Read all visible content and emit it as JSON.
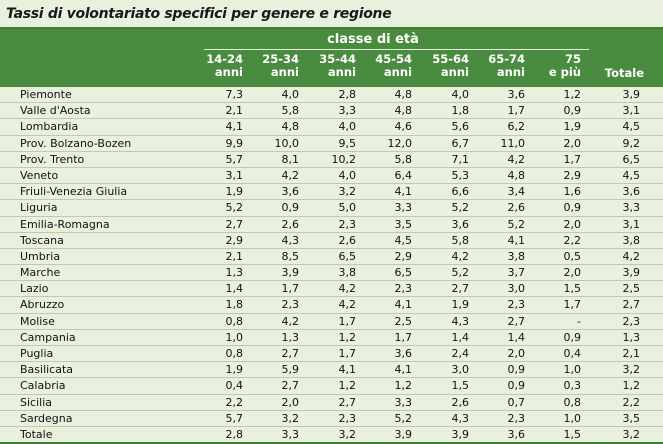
{
  "title": "Tassi di volontariato specifici per genere e regione",
  "group_header": "classe di età",
  "columns": [
    {
      "l1": "14-24",
      "l2": "anni"
    },
    {
      "l1": "25-34",
      "l2": "anni"
    },
    {
      "l1": "35-44",
      "l2": "anni"
    },
    {
      "l1": "45-54",
      "l2": "anni"
    },
    {
      "l1": "55-64",
      "l2": "anni"
    },
    {
      "l1": "65-74",
      "l2": "anni"
    },
    {
      "l1": "75",
      "l2": "e più"
    }
  ],
  "total_header": "Totale",
  "rows": [
    {
      "name": "Piemonte",
      "v": [
        "7,3",
        "4,0",
        "2,8",
        "4,8",
        "4,0",
        "3,6",
        "1,2",
        "3,9"
      ]
    },
    {
      "name": "Valle d'Aosta",
      "v": [
        "2,1",
        "5,8",
        "3,3",
        "4,8",
        "1,8",
        "1,7",
        "0,9",
        "3,1"
      ]
    },
    {
      "name": "Lombardia",
      "v": [
        "4,1",
        "4,8",
        "4,0",
        "4,6",
        "5,6",
        "6,2",
        "1,9",
        "4,5"
      ]
    },
    {
      "name": "Prov. Bolzano-Bozen",
      "v": [
        "9,9",
        "10,0",
        "9,5",
        "12,0",
        "6,7",
        "11,0",
        "2,0",
        "9,2"
      ]
    },
    {
      "name": "Prov. Trento",
      "v": [
        "5,7",
        "8,1",
        "10,2",
        "5,8",
        "7,1",
        "4,2",
        "1,7",
        "6,5"
      ]
    },
    {
      "name": "Veneto",
      "v": [
        "3,1",
        "4,2",
        "4,0",
        "6,4",
        "5,3",
        "4,8",
        "2,9",
        "4,5"
      ]
    },
    {
      "name": "Friuli-Venezia Giulia",
      "v": [
        "1,9",
        "3,6",
        "3,2",
        "4,1",
        "6,6",
        "3,4",
        "1,6",
        "3,6"
      ]
    },
    {
      "name": "Liguria",
      "v": [
        "5,2",
        "0,9",
        "5,0",
        "3,3",
        "5,2",
        "2,6",
        "0,9",
        "3,3"
      ]
    },
    {
      "name": "Emilia-Romagna",
      "v": [
        "2,7",
        "2,6",
        "2,3",
        "3,5",
        "3,6",
        "5,2",
        "2,0",
        "3,1"
      ]
    },
    {
      "name": "Toscana",
      "v": [
        "2,9",
        "4,3",
        "2,6",
        "4,5",
        "5,8",
        "4,1",
        "2,2",
        "3,8"
      ]
    },
    {
      "name": "Umbria",
      "v": [
        "2,1",
        "8,5",
        "6,5",
        "2,9",
        "4,2",
        "3,8",
        "0,5",
        "4,2"
      ]
    },
    {
      "name": "Marche",
      "v": [
        "1,3",
        "3,9",
        "3,8",
        "6,5",
        "5,2",
        "3,7",
        "2,0",
        "3,9"
      ]
    },
    {
      "name": "Lazio",
      "v": [
        "1,4",
        "1,7",
        "4,2",
        "2,3",
        "2,7",
        "3,0",
        "1,5",
        "2,5"
      ]
    },
    {
      "name": "Abruzzo",
      "v": [
        "1,8",
        "2,3",
        "4,2",
        "4,1",
        "1,9",
        "2,3",
        "1,7",
        "2,7"
      ]
    },
    {
      "name": "Molise",
      "v": [
        "0,8",
        "4,2",
        "1,7",
        "2,5",
        "4,3",
        "2,7",
        "-",
        "2,3"
      ]
    },
    {
      "name": "Campania",
      "v": [
        "1,0",
        "1,3",
        "1,2",
        "1,7",
        "1,4",
        "1,4",
        "0,9",
        "1,3"
      ]
    },
    {
      "name": "Puglia",
      "v": [
        "0,8",
        "2,7",
        "1,7",
        "3,6",
        "2,4",
        "2,0",
        "0,4",
        "2,1"
      ]
    },
    {
      "name": "Basilicata",
      "v": [
        "1,9",
        "5,9",
        "4,1",
        "4,1",
        "3,0",
        "0,9",
        "1,0",
        "3,2"
      ]
    },
    {
      "name": "Calabria",
      "v": [
        "0,4",
        "2,7",
        "1,2",
        "1,2",
        "1,5",
        "0,9",
        "0,3",
        "1,2"
      ]
    },
    {
      "name": "Sicilia",
      "v": [
        "2,2",
        "2,0",
        "2,7",
        "3,3",
        "2,6",
        "0,7",
        "0,8",
        "2,2"
      ]
    },
    {
      "name": "Sardegna",
      "v": [
        "5,7",
        "3,2",
        "2,3",
        "5,2",
        "4,3",
        "2,3",
        "1,0",
        "3,5"
      ]
    },
    {
      "name": "Totale",
      "v": [
        "2,8",
        "3,3",
        "3,2",
        "3,9",
        "3,9",
        "3,6",
        "1,5",
        "3,2"
      ]
    }
  ]
}
